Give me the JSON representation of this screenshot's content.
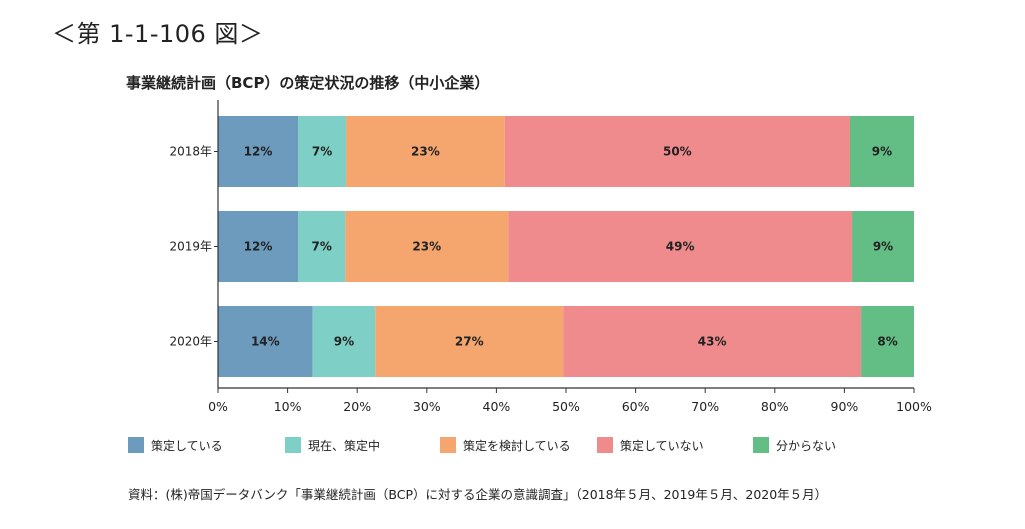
{
  "figure_label": "＜第 1-1-106 図＞",
  "source": "資料：(株)帝国データバンク「事業継続計画（BCP）に対する企業の意識調査」（2018年５月、2019年５月、2020年５月）",
  "chart_data": {
    "type": "bar",
    "orientation": "horizontal",
    "stacked": true,
    "title": "事業継続計画（BCP）の策定状況の推移（中小企業）",
    "categories": [
      "2018年",
      "2019年",
      "2020年"
    ],
    "series": [
      {
        "name": "策定している",
        "color": "#6c9bbd",
        "values": [
          11.5,
          11.5,
          13.6
        ],
        "labels": [
          "12%",
          "12%",
          "14%"
        ]
      },
      {
        "name": "現在、策定中",
        "color": "#7ed0c6",
        "values": [
          6.9,
          6.8,
          9.0
        ],
        "labels": [
          "7%",
          "7%",
          "9%"
        ]
      },
      {
        "name": "策定を検討している",
        "color": "#f4a66e",
        "values": [
          22.8,
          23.4,
          27.0
        ],
        "labels": [
          "23%",
          "23%",
          "27%"
        ]
      },
      {
        "name": "策定していない",
        "color": "#f08b8d",
        "values": [
          49.6,
          49.4,
          42.8
        ],
        "labels": [
          "50%",
          "49%",
          "43%"
        ]
      },
      {
        "name": "分からない",
        "color": "#63be85",
        "values": [
          9.2,
          8.9,
          7.6
        ],
        "labels": [
          "9%",
          "9%",
          "8%"
        ]
      }
    ],
    "x_ticks": [
      "0%",
      "10%",
      "20%",
      "30%",
      "40%",
      "50%",
      "60%",
      "70%",
      "80%",
      "90%",
      "100%"
    ],
    "xlim": [
      0,
      100
    ],
    "grid": false,
    "legend_position": "bottom"
  }
}
